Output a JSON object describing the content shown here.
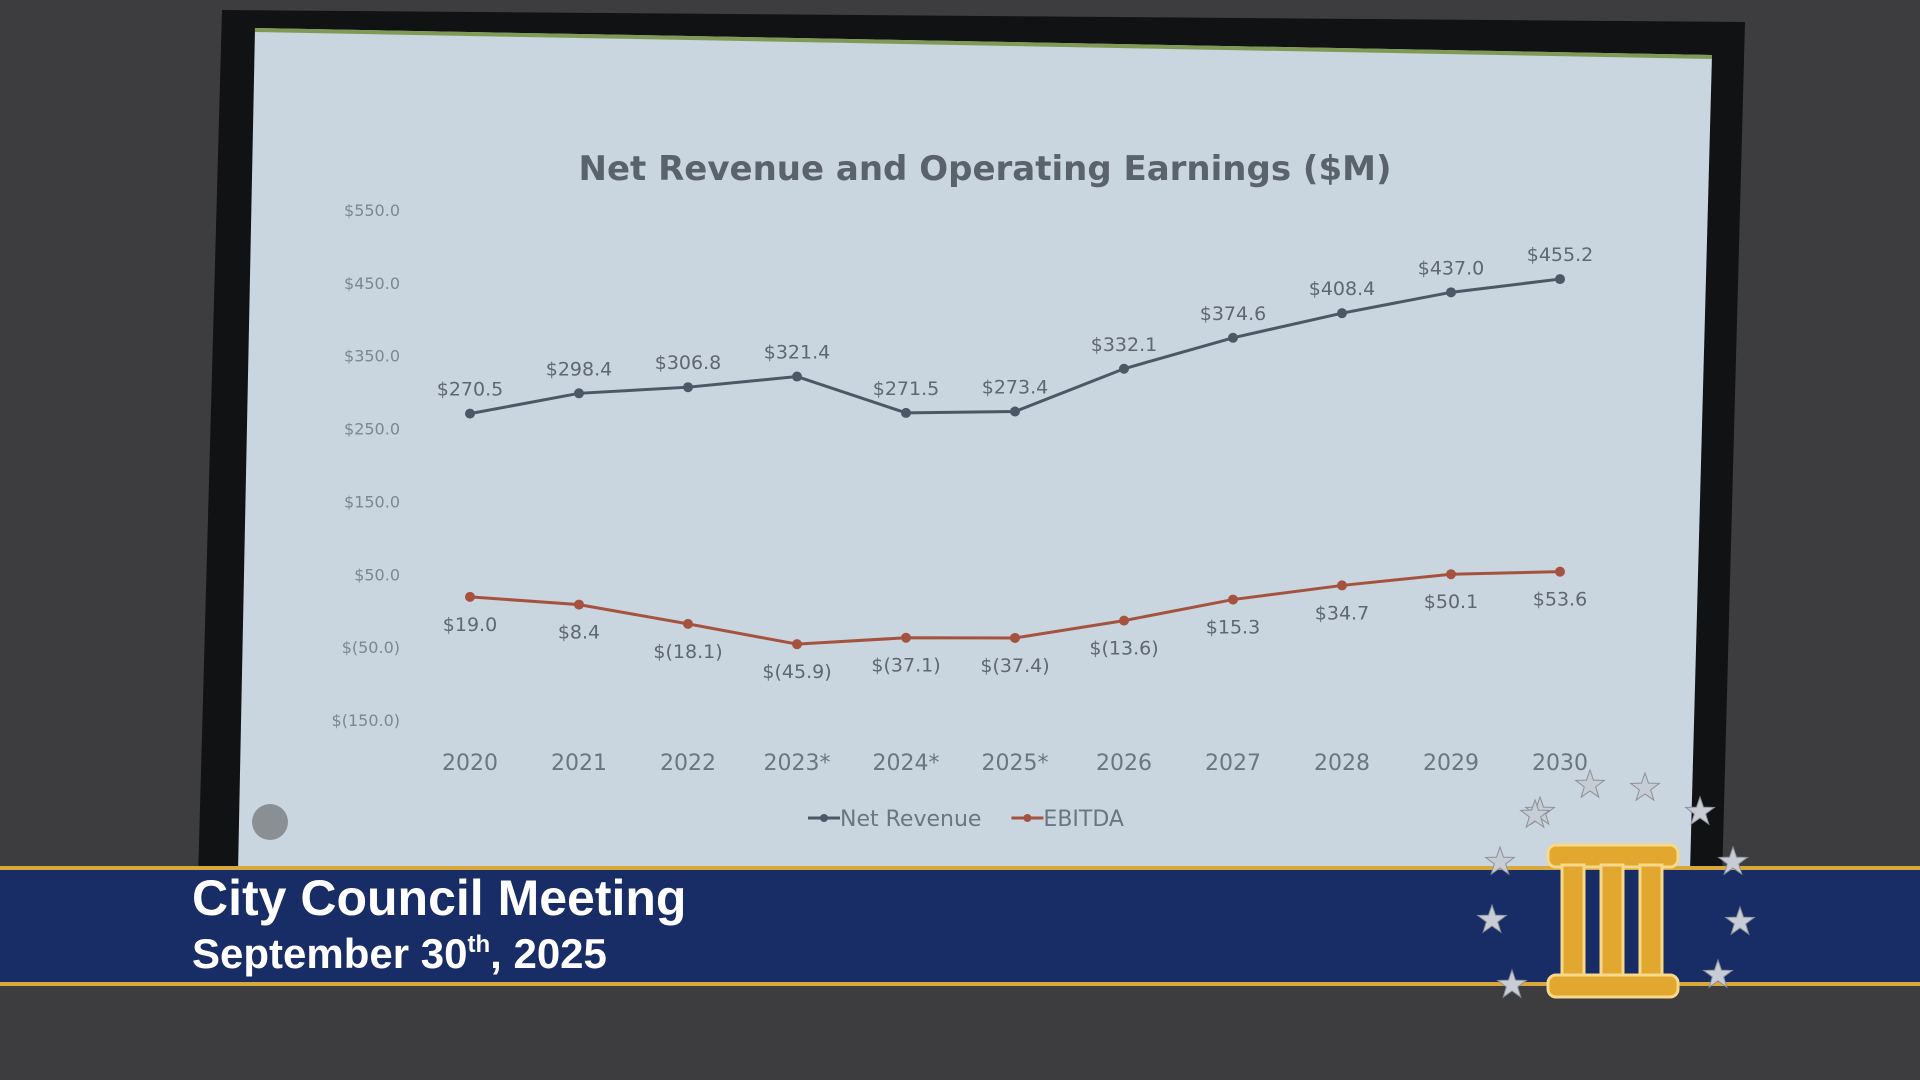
{
  "chart_data": {
    "type": "line",
    "title": "Net Revenue and Operating Earnings ($M)",
    "categories": [
      "2020",
      "2021",
      "2022",
      "2023*",
      "2024*",
      "2025*",
      "2026",
      "2027",
      "2028",
      "2029",
      "2030"
    ],
    "series": [
      {
        "name": "Net Revenue",
        "color": "#4b5967",
        "values": [
          270.5,
          298.4,
          306.8,
          321.4,
          271.5,
          273.4,
          332.1,
          374.6,
          408.4,
          437.0,
          455.2
        ],
        "value_labels": [
          "$270.5",
          "$298.4",
          "$306.8",
          "$321.4",
          "$271.5",
          "$273.4",
          "$332.1",
          "$374.6",
          "$408.4",
          "$437.0",
          "$455.2"
        ]
      },
      {
        "name": "EBITDA",
        "color": "#a5533f",
        "values": [
          19.0,
          8.4,
          -18.1,
          -45.9,
          -37.1,
          -37.4,
          -13.6,
          15.3,
          34.7,
          50.1,
          53.6
        ],
        "value_labels": [
          "$19.0",
          "$8.4",
          "$(18.1)",
          "$(45.9)",
          "$(37.1)",
          "$(37.4)",
          "$(13.6)",
          "$15.3",
          "$34.7",
          "$50.1",
          "$53.6"
        ]
      }
    ],
    "ylim": [
      -150,
      550
    ],
    "yticks": [
      {
        "value": -150,
        "label": "$(150.0)"
      },
      {
        "value": -50,
        "label": "$(50.0)"
      },
      {
        "value": 50,
        "label": "$50.0"
      },
      {
        "value": 150,
        "label": "$150.0"
      },
      {
        "value": 250,
        "label": "$250.0"
      },
      {
        "value": 350,
        "label": "$350.0"
      },
      {
        "value": 450,
        "label": "$450.0"
      },
      {
        "value": 550,
        "label": "$550.0"
      }
    ],
    "grid": false,
    "legend": "bottom"
  },
  "banner": {
    "title": "City Council Meeting",
    "date": "September 30",
    "date_suffix": "th",
    "date_year": ", 2025"
  }
}
